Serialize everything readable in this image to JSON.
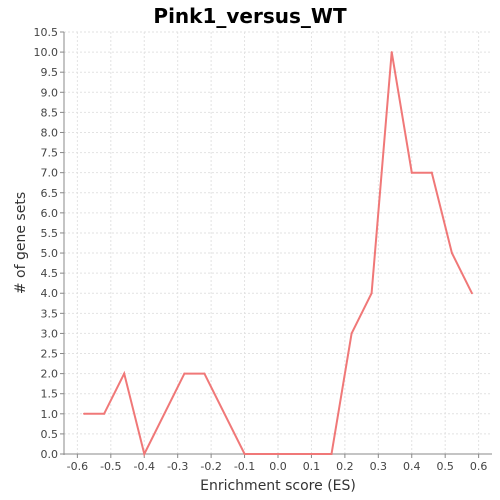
{
  "chart_data": {
    "type": "line",
    "title": "Pink1_versus_WT",
    "xlabel": "Enrichment score (ES)",
    "ylabel": "# of gene sets",
    "xlim": [
      -0.64,
      0.64
    ],
    "ylim": [
      0.0,
      10.5
    ],
    "x_ticks": [
      -0.6,
      -0.5,
      -0.4,
      -0.3,
      -0.2,
      -0.1,
      0.0,
      0.1,
      0.2,
      0.3,
      0.4,
      0.5,
      0.6
    ],
    "x_tick_labels": [
      "-0.6",
      "-0.5",
      "-0.4",
      "-0.3",
      "-0.2",
      "-0.1",
      "0.0",
      "0.1",
      "0.2",
      "0.3",
      "0.4",
      "0.5",
      "0.6"
    ],
    "y_ticks": [
      0.0,
      0.5,
      1.0,
      1.5,
      2.0,
      2.5,
      3.0,
      3.5,
      4.0,
      4.5,
      5.0,
      5.5,
      6.0,
      6.5,
      7.0,
      7.5,
      8.0,
      8.5,
      9.0,
      9.5,
      10.0,
      10.5
    ],
    "y_tick_labels": [
      "0.0",
      "0.5",
      "1.0",
      "1.5",
      "2.0",
      "2.5",
      "3.0",
      "3.5",
      "4.0",
      "4.5",
      "5.0",
      "5.5",
      "6.0",
      "6.5",
      "7.0",
      "7.5",
      "8.0",
      "8.5",
      "9.0",
      "9.5",
      "10.0",
      "10.5"
    ],
    "grid": true,
    "series": [
      {
        "color": "#f07878",
        "x": [
          -0.58,
          -0.52,
          -0.46,
          -0.4,
          -0.28,
          -0.22,
          -0.1,
          0.04,
          0.16,
          0.22,
          0.28,
          0.34,
          0.4,
          0.46,
          0.52,
          0.58
        ],
        "y": [
          1,
          1,
          2,
          0,
          2,
          2,
          0,
          0,
          0,
          3,
          4,
          10,
          7,
          7,
          5,
          4
        ]
      }
    ]
  }
}
